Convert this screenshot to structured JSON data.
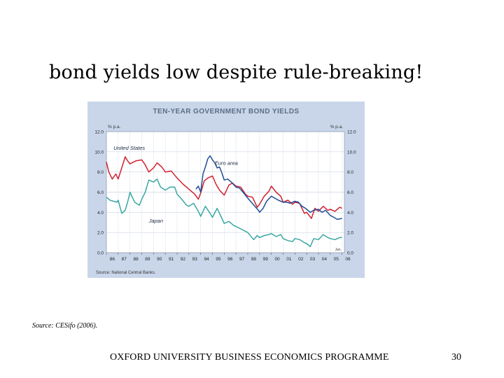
{
  "slide": {
    "title": "bond yields low despite rule-breaking!",
    "source_note": "Source: CESifo (2006).",
    "footer": "OXFORD UNIVERSITY BUSINESS ECONOMICS PROGRAMME",
    "page_number": "30"
  },
  "colors": {
    "panel_bg": "#c9d6ea",
    "plot_bg": "#ffffff",
    "title": "#5b6c84",
    "united_states": "#d02030",
    "euro_area": "#1f4e96",
    "japan": "#3aa8a2"
  },
  "chart_data": {
    "type": "line",
    "title": "Ten-Year Government Bond Yields",
    "ylabel_left": "% p.a.",
    "ylabel_right": "% p.a.",
    "ylim": [
      0,
      12
    ],
    "yticks": [
      "0.0",
      "2.0",
      "4.0",
      "6.0",
      "8.0",
      "10.0",
      "12.0"
    ],
    "xlim": [
      1986,
      2006.2
    ],
    "xticks": [
      "86",
      "87",
      "88",
      "89",
      "90",
      "91",
      "92",
      "93",
      "94",
      "95",
      "96",
      "97",
      "98",
      "99",
      "00",
      "01",
      "02",
      "03",
      "04",
      "05",
      "06"
    ],
    "x_note": "Jan.",
    "source": "Source: National Central Banks.",
    "grid": true,
    "series": [
      {
        "name": "United States",
        "color": "#d02030",
        "x": [
          1986,
          1986.2,
          1986.5,
          1986.8,
          1987,
          1987.3,
          1987.6,
          1987.8,
          1988,
          1988.5,
          1989,
          1989.3,
          1989.6,
          1990,
          1990.3,
          1990.7,
          1991,
          1991.5,
          1992,
          1992.5,
          1993,
          1993.5,
          1993.8,
          1994,
          1994.3,
          1994.6,
          1995,
          1995.3,
          1995.6,
          1996,
          1996.4,
          1996.7,
          1997,
          1997.4,
          1997.8,
          1998,
          1998.4,
          1998.8,
          1999,
          1999.4,
          1999.8,
          2000,
          2000.4,
          2000.8,
          2001,
          2001.4,
          2001.8,
          2002,
          2002.4,
          2002.8,
          2003,
          2003.4,
          2003.7,
          2004,
          2004.4,
          2004.8,
          2005,
          2005.4,
          2005.8,
          2006
        ],
        "values": [
          9.0,
          8.0,
          7.3,
          7.8,
          7.3,
          8.4,
          9.5,
          9.1,
          8.8,
          9.1,
          9.2,
          8.7,
          8.0,
          8.4,
          8.9,
          8.5,
          8.0,
          8.1,
          7.4,
          6.8,
          6.3,
          5.8,
          5.3,
          5.9,
          7.1,
          7.4,
          7.6,
          6.8,
          6.2,
          5.7,
          6.7,
          6.9,
          6.6,
          6.5,
          5.8,
          5.6,
          5.5,
          4.5,
          4.8,
          5.6,
          6.1,
          6.6,
          6.0,
          5.6,
          5.0,
          5.2,
          4.8,
          5.0,
          4.9,
          3.9,
          4.0,
          3.4,
          4.4,
          4.1,
          4.6,
          4.2,
          4.3,
          4.1,
          4.5,
          4.4
        ]
      },
      {
        "name": "Euro area",
        "color": "#1f4e96",
        "x": [
          1993.6,
          1993.8,
          1994,
          1994.2,
          1994.4,
          1994.6,
          1994.8,
          1995,
          1995.2,
          1995.4,
          1995.6,
          1995.8,
          1996,
          1996.3,
          1996.6,
          1997,
          1997.3,
          1997.6,
          1998,
          1998.3,
          1998.6,
          1998.9,
          1999,
          1999.3,
          1999.6,
          2000,
          2000.3,
          2000.6,
          2001,
          2001.3,
          2001.6,
          2002,
          2002.3,
          2002.6,
          2002.9,
          2003,
          2003.3,
          2003.6,
          2004,
          2004.3,
          2004.6,
          2005,
          2005.3,
          2005.6,
          2006
        ],
        "values": [
          6.3,
          6.6,
          6.0,
          7.8,
          8.5,
          9.3,
          9.6,
          9.2,
          8.9,
          8.4,
          8.5,
          7.9,
          7.2,
          7.3,
          7.0,
          6.5,
          6.4,
          6.0,
          5.4,
          5.0,
          4.6,
          4.2,
          4.0,
          4.4,
          5.1,
          5.6,
          5.4,
          5.2,
          5.0,
          5.0,
          4.9,
          5.1,
          5.0,
          4.6,
          4.4,
          4.3,
          4.0,
          4.2,
          4.3,
          4.0,
          4.2,
          3.7,
          3.5,
          3.3,
          3.4
        ]
      },
      {
        "name": "Japan",
        "color": "#3aa8a2",
        "x": [
          1986,
          1986.3,
          1986.6,
          1986.9,
          1987,
          1987.3,
          1987.6,
          1987.8,
          1988,
          1988.4,
          1988.8,
          1989,
          1989.3,
          1989.6,
          1990,
          1990.3,
          1990.6,
          1991,
          1991.4,
          1991.8,
          1992,
          1992.4,
          1992.8,
          1993,
          1993.4,
          1993.8,
          1994,
          1994.4,
          1994.8,
          1995,
          1995.4,
          1995.8,
          1996,
          1996.4,
          1996.8,
          1997,
          1997.5,
          1998,
          1998.5,
          1998.8,
          1999,
          1999.4,
          1999.8,
          2000,
          2000.4,
          2000.8,
          2001,
          2001.4,
          2001.8,
          2002,
          2002.4,
          2002.8,
          2003,
          2003.3,
          2003.6,
          2004,
          2004.4,
          2004.8,
          2005,
          2005.4,
          2005.8,
          2006
        ],
        "values": [
          5.5,
          5.2,
          5.1,
          5.0,
          5.2,
          3.9,
          4.2,
          5.0,
          6.0,
          5.0,
          4.7,
          5.3,
          6.0,
          7.2,
          7.0,
          7.3,
          6.5,
          6.2,
          6.5,
          6.5,
          5.8,
          5.3,
          4.7,
          4.6,
          4.9,
          4.1,
          3.6,
          4.6,
          3.9,
          3.5,
          4.4,
          3.4,
          2.9,
          3.1,
          2.7,
          2.6,
          2.3,
          2.0,
          1.3,
          1.7,
          1.5,
          1.7,
          1.8,
          1.9,
          1.6,
          1.8,
          1.4,
          1.2,
          1.1,
          1.4,
          1.3,
          1.0,
          0.9,
          0.6,
          1.4,
          1.3,
          1.8,
          1.5,
          1.4,
          1.3,
          1.5,
          1.5
        ]
      }
    ],
    "labels": [
      {
        "text": "United States",
        "x": 1986.6,
        "y": 10.2
      },
      {
        "text": "Euro area",
        "x": 1995.2,
        "y": 8.7
      },
      {
        "text": "Japan",
        "x": 1989.6,
        "y": 3.0
      }
    ]
  }
}
